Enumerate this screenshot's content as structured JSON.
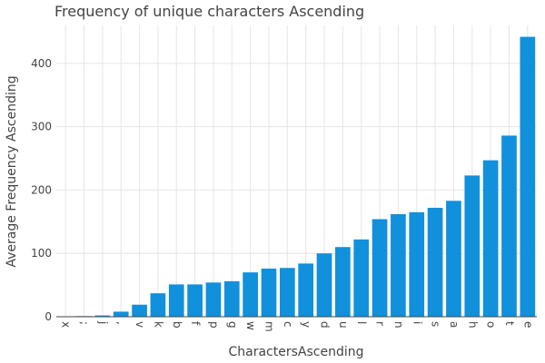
{
  "chart_data": {
    "type": "bar",
    "title": "Frequency of unique characters Ascending",
    "xlabel": "CharactersAscending",
    "ylabel": "Average Frequency Ascending",
    "categories": [
      "x",
      ";",
      "j",
      ",",
      "v",
      "k",
      "b",
      "f",
      "p",
      "g",
      "w",
      "m",
      "c",
      "y",
      "d",
      "u",
      "l",
      "r",
      "n",
      "i",
      "s",
      "a",
      "h",
      "o",
      "t",
      "e"
    ],
    "values": [
      0,
      1,
      2,
      8,
      19,
      37,
      51,
      51,
      54,
      56,
      70,
      76,
      77,
      84,
      100,
      110,
      122,
      154,
      162,
      165,
      172,
      183,
      223,
      247,
      286,
      442
    ],
    "ylim": [
      0,
      460
    ],
    "yticks": [
      0,
      100,
      200,
      300,
      400
    ],
    "grid": true,
    "bar_color": "#1190dc"
  }
}
